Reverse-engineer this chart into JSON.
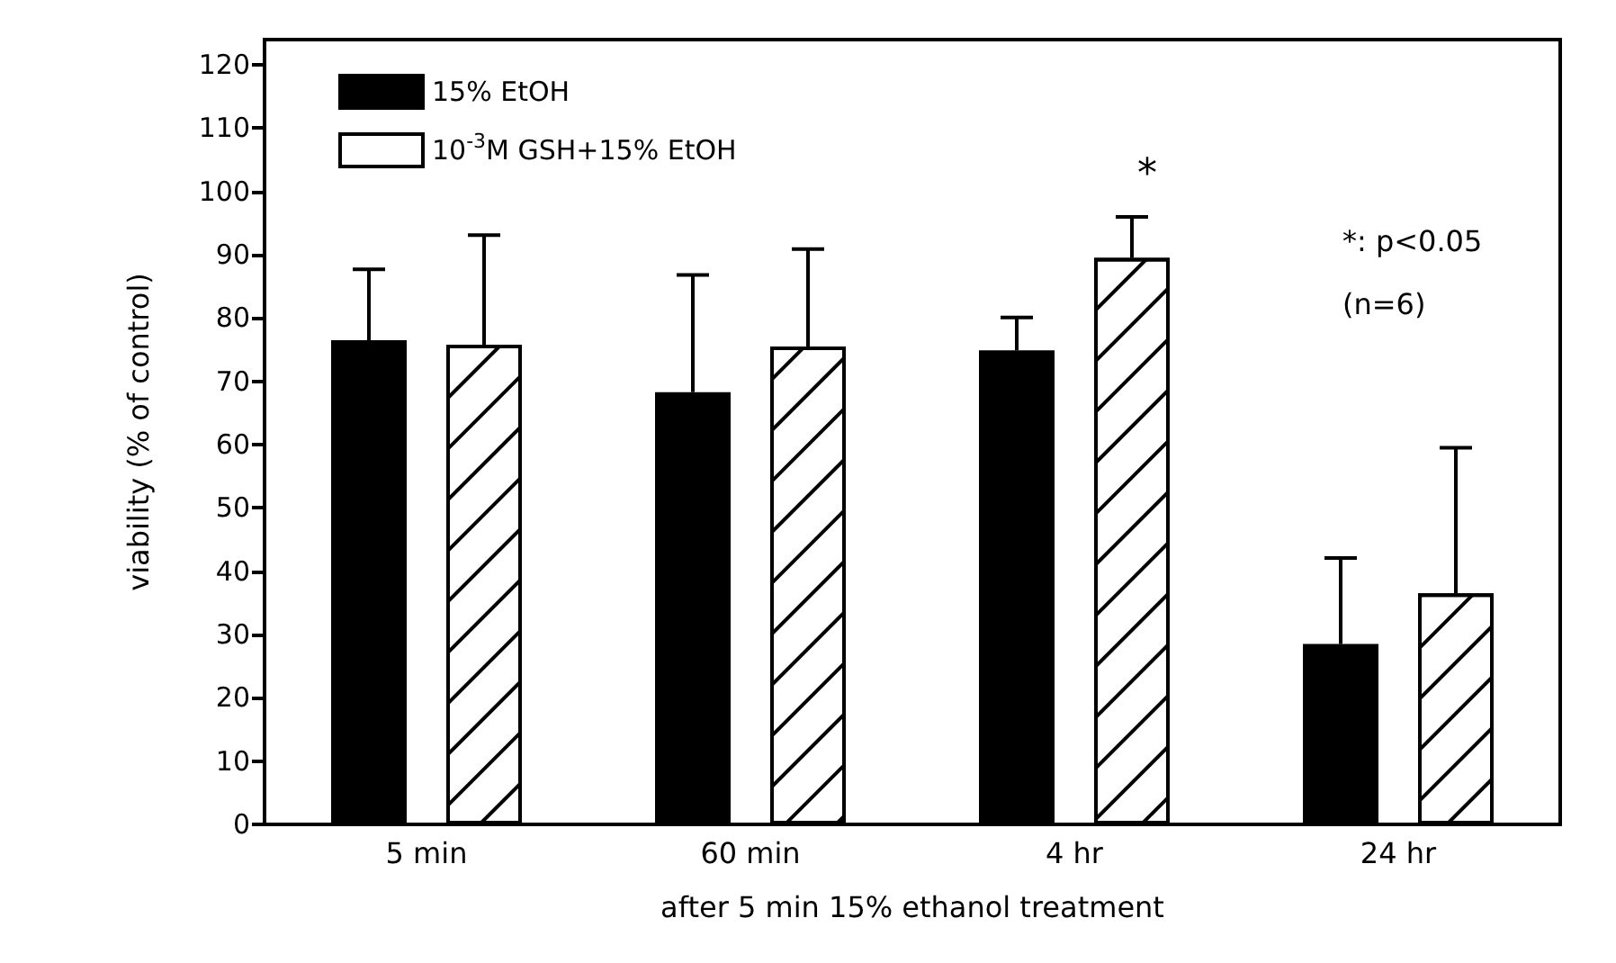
{
  "chart_data": {
    "type": "bar",
    "xlabel": "after 5 min 15% ethanol treatment",
    "ylabel": "viability (% of control)",
    "categories": [
      "5 min",
      "60 min",
      "4 hr",
      "24 hr"
    ],
    "series": [
      {
        "name": "15% EtOH",
        "color": "#000000",
        "values": [
          76.5,
          68.3,
          74.9,
          28.5
        ],
        "errors": [
          [
            76.5,
            87.7
          ],
          [
            68.3,
            86.8
          ],
          [
            74.9,
            80.1
          ],
          [
            28.5,
            42.1
          ]
        ]
      },
      {
        "name": "10$^{-3}$M GSH+15% EtOH",
        "color": "#ffffff",
        "values": [
          75.8,
          75.5,
          89.5,
          36.5
        ],
        "errors": [
          [
            75.8,
            93.1
          ],
          [
            75.5,
            90.9
          ],
          [
            89.5,
            96
          ],
          [
            36.5,
            59.5
          ]
        ]
      }
    ],
    "ylim": [
      0,
      124
    ],
    "yticks": [
      0,
      10,
      20,
      30,
      40,
      50,
      60,
      70,
      80,
      90,
      100,
      110,
      120
    ],
    "grid": false,
    "legend": "top left",
    "annotations": [
      "*",
      "*: p<0.05",
      "(n=6)"
    ]
  }
}
